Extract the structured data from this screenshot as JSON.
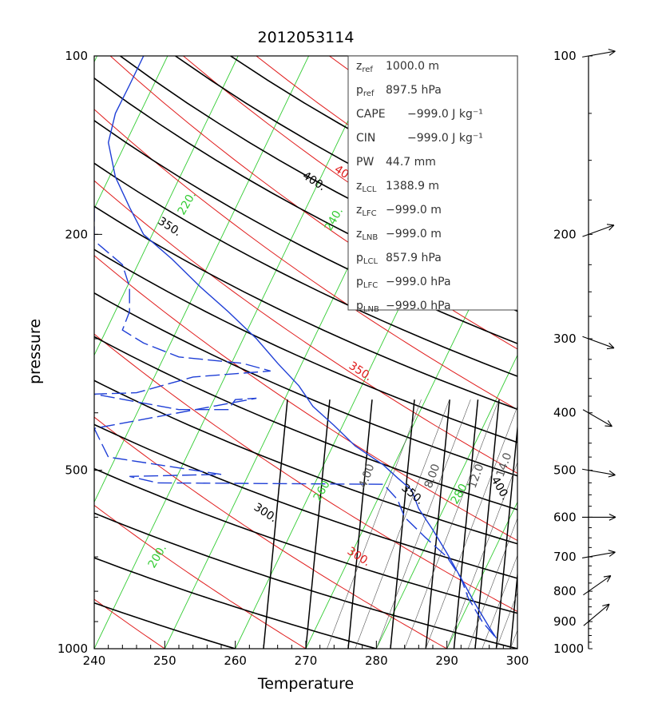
{
  "chart_data": {
    "type": "line",
    "title": "2012053114",
    "xlabel": "Temperature",
    "ylabel": "pressure",
    "xlim": [
      240,
      300
    ],
    "ylim": [
      1000,
      100
    ],
    "x_ticks": [
      "240",
      "250",
      "260",
      "270",
      "280",
      "290",
      "300"
    ],
    "y_ticks": [
      "100",
      "200",
      "500",
      "1000"
    ],
    "colors": {
      "profile": "#1f3fd6",
      "dry_adiabat": "#e01b1b",
      "isotherm": "#33cc33",
      "moist_adiabat": "#000000",
      "mixing_ratio": "#555555"
    },
    "contour_labels": {
      "dry_adiabat": [
        "400.",
        "350.",
        "300."
      ],
      "isotherm": [
        "220.",
        "240.",
        "260.",
        "280.",
        "200."
      ],
      "moist_adiabat": [
        "400.",
        "350.",
        "350.",
        "300.",
        "400."
      ],
      "mixing_ratio": [
        "4.00",
        "8.00",
        "12.0",
        "14.0"
      ]
    },
    "series": [
      {
        "name": "temperature",
        "style": "solid",
        "points": [
          [
            247,
            100
          ],
          [
            245,
            112
          ],
          [
            243,
            125
          ],
          [
            242,
            140
          ],
          [
            243,
            160
          ],
          [
            245,
            180
          ],
          [
            247,
            200
          ],
          [
            251,
            220
          ],
          [
            255,
            245
          ],
          [
            259,
            270
          ],
          [
            263,
            300
          ],
          [
            266,
            330
          ],
          [
            269,
            360
          ],
          [
            271,
            390
          ],
          [
            274,
            420
          ],
          [
            277,
            455
          ],
          [
            281,
            490
          ],
          [
            283,
            515
          ],
          [
            285,
            540
          ],
          [
            286,
            580
          ],
          [
            288,
            630
          ],
          [
            290,
            690
          ],
          [
            292,
            760
          ],
          [
            294,
            840
          ],
          [
            296,
            920
          ],
          [
            297,
            960
          ]
        ]
      },
      {
        "name": "dewpoint",
        "style": "dashed",
        "points": [
          [
            240,
            180
          ],
          [
            240,
            205
          ],
          [
            244,
            225
          ],
          [
            245,
            245
          ],
          [
            245,
            270
          ],
          [
            244,
            290
          ],
          [
            247,
            305
          ],
          [
            252,
            322
          ],
          [
            261,
            330
          ],
          [
            265,
            340
          ],
          [
            254,
            348
          ],
          [
            246,
            370
          ],
          [
            240,
            372
          ],
          [
            252,
            395
          ],
          [
            259,
            395
          ],
          [
            260,
            380
          ],
          [
            263,
            378
          ],
          [
            240,
            425
          ],
          [
            242,
            475
          ],
          [
            258,
            508
          ],
          [
            245,
            512
          ],
          [
            249,
            525
          ],
          [
            281,
            528
          ],
          [
            283,
            560
          ],
          [
            284,
            600
          ],
          [
            287,
            650
          ],
          [
            290,
            700
          ],
          [
            292,
            760
          ],
          [
            293,
            820
          ],
          [
            295,
            900
          ],
          [
            297,
            960
          ]
        ]
      }
    ],
    "info": [
      {
        "name": "z",
        "sub": "ref",
        "value": "1000.0 m"
      },
      {
        "name": "p",
        "sub": "ref",
        "value": "897.5 hPa"
      },
      {
        "name": "CAPE",
        "sub": "",
        "value": "−999.0 J kg⁻¹"
      },
      {
        "name": "CIN",
        "sub": "",
        "value": "−999.0 J kg⁻¹"
      },
      {
        "name": "PW",
        "sub": "",
        "value": "44.7 mm"
      },
      {
        "name": "z",
        "sub": "LCL",
        "value": "1388.9 m"
      },
      {
        "name": "z",
        "sub": "LFC",
        "value": "−999.0 m"
      },
      {
        "name": "z",
        "sub": "LNB",
        "value": "−999.0 m"
      },
      {
        "name": "p",
        "sub": "LCL",
        "value": "857.9 hPa"
      },
      {
        "name": "p",
        "sub": "LFC",
        "value": "−999.0 hPa"
      },
      {
        "name": "p",
        "sub": "LNB",
        "value": "−999.0 hPa"
      }
    ],
    "wind_profile": {
      "levels": [
        "100",
        "200",
        "300",
        "400",
        "500",
        "600",
        "700",
        "800",
        "900",
        "1000"
      ],
      "barbs": [
        {
          "pressure": 100,
          "dir_deg": 80
        },
        {
          "pressure": 200,
          "dir_deg": 70
        },
        {
          "pressure": 300,
          "dir_deg": 110
        },
        {
          "pressure": 400,
          "dir_deg": 120
        },
        {
          "pressure": 500,
          "dir_deg": 100
        },
        {
          "pressure": 600,
          "dir_deg": 90
        },
        {
          "pressure": 700,
          "dir_deg": 80
        },
        {
          "pressure": 800,
          "dir_deg": 55
        },
        {
          "pressure": 900,
          "dir_deg": 50
        }
      ]
    }
  }
}
